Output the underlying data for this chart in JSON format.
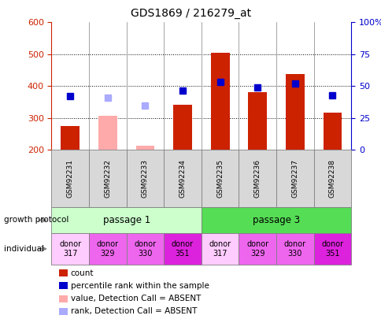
{
  "title": "GDS1869 / 216279_at",
  "samples": [
    "GSM92231",
    "GSM92232",
    "GSM92233",
    "GSM92234",
    "GSM92235",
    "GSM92236",
    "GSM92237",
    "GSM92238"
  ],
  "count_values": [
    275,
    307,
    213,
    342,
    505,
    380,
    438,
    318
  ],
  "count_absent": [
    false,
    true,
    true,
    false,
    false,
    false,
    false,
    false
  ],
  "rank_values": [
    370,
    365,
    340,
    385,
    412,
    395,
    408,
    372
  ],
  "rank_absent": [
    false,
    true,
    true,
    false,
    false,
    false,
    false,
    false
  ],
  "ylim_left": [
    200,
    600
  ],
  "yticks_left": [
    200,
    300,
    400,
    500,
    600
  ],
  "yticks_right": [
    0,
    25,
    50,
    75,
    100
  ],
  "ytick_labels_right": [
    "0",
    "25",
    "50",
    "75",
    "100%"
  ],
  "individual": [
    "donor\n317",
    "donor\n329",
    "donor\n330",
    "donor\n351",
    "donor\n317",
    "donor\n329",
    "donor\n330",
    "donor\n351"
  ],
  "individual_colors": [
    "#ffccff",
    "#ee66ee",
    "#ee66ee",
    "#dd22dd",
    "#ffccff",
    "#ee66ee",
    "#ee66ee",
    "#dd22dd"
  ],
  "passage1_color": "#ccffcc",
  "passage3_color": "#55dd55",
  "color_count_present": "#cc2200",
  "color_count_absent": "#ffaaaa",
  "color_rank_present": "#0000cc",
  "color_rank_absent": "#aaaaff",
  "legend_items": [
    {
      "label": "count",
      "color": "#cc2200"
    },
    {
      "label": "percentile rank within the sample",
      "color": "#0000cc"
    },
    {
      "label": "value, Detection Call = ABSENT",
      "color": "#ffaaaa"
    },
    {
      "label": "rank, Detection Call = ABSENT",
      "color": "#aaaaff"
    }
  ],
  "left_axis_color": "#cc2200",
  "right_axis_color": "#0000cc",
  "plot_bg_color": "#d8d8d8",
  "bg_color": "#ffffff"
}
